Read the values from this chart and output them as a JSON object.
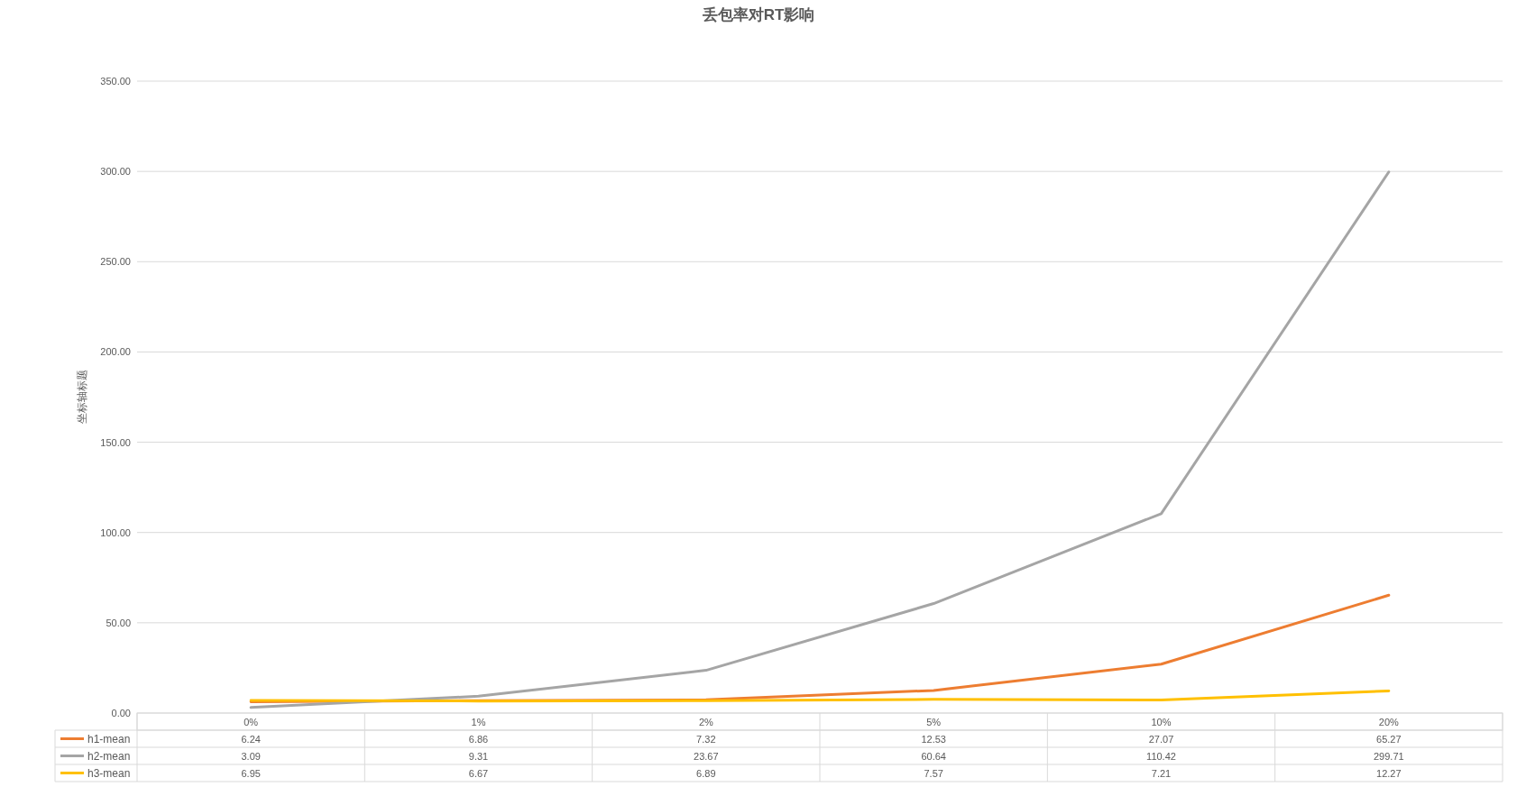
{
  "chart_data": {
    "type": "line",
    "title": "丢包率对RT影响",
    "ylabel": "坐标轴标题",
    "categories": [
      "0%",
      "1%",
      "2%",
      "5%",
      "10%",
      "20%"
    ],
    "series": [
      {
        "name": "h1-mean",
        "color": "#ed7d31",
        "values": [
          6.24,
          6.86,
          7.32,
          12.53,
          27.07,
          65.27
        ]
      },
      {
        "name": "h2-mean",
        "color": "#a5a5a5",
        "values": [
          3.09,
          9.31,
          23.67,
          60.64,
          110.42,
          299.71
        ]
      },
      {
        "name": "h3-mean",
        "color": "#ffc000",
        "values": [
          6.95,
          6.67,
          6.89,
          7.57,
          7.21,
          12.27
        ]
      }
    ],
    "ylim": [
      0,
      350
    ],
    "yticks": [
      {
        "value": 0,
        "label": "0.00"
      },
      {
        "value": 50,
        "label": "50.00"
      },
      {
        "value": 100,
        "label": "100.00"
      },
      {
        "value": 150,
        "label": "150.00"
      },
      {
        "value": 200,
        "label": "200.00"
      },
      {
        "value": 250,
        "label": "250.00"
      },
      {
        "value": 300,
        "label": "300.00"
      },
      {
        "value": 350,
        "label": "350.00"
      }
    ],
    "grid": "y",
    "legend": "bottom",
    "data_labels": true,
    "marker": "none",
    "line_style": "solid"
  }
}
